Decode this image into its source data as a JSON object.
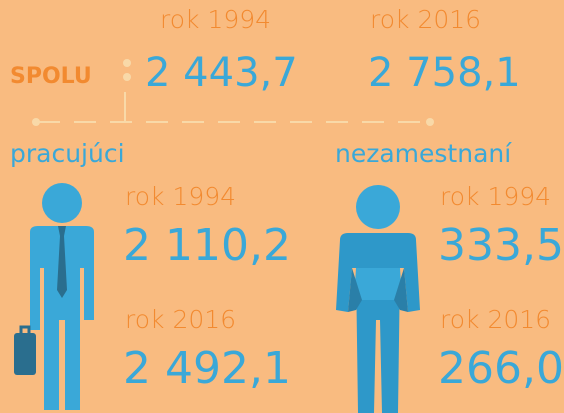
{
  "summary": {
    "label": "SPOLU",
    "years": [
      "rok 1994",
      "rok 2016"
    ],
    "values": [
      "2 443,7",
      "2 758,1"
    ]
  },
  "groups": [
    {
      "label": "pracujúci",
      "entries": [
        {
          "year": "rok 1994",
          "value": "2 110,2"
        },
        {
          "year": "rok 2016",
          "value": "2 492,1"
        }
      ]
    },
    {
      "label": "nezamestnaní",
      "entries": [
        {
          "year": "rok 1994",
          "value": "333,5"
        },
        {
          "year": "rok 2016",
          "value": "266,0"
        }
      ]
    }
  ]
}
